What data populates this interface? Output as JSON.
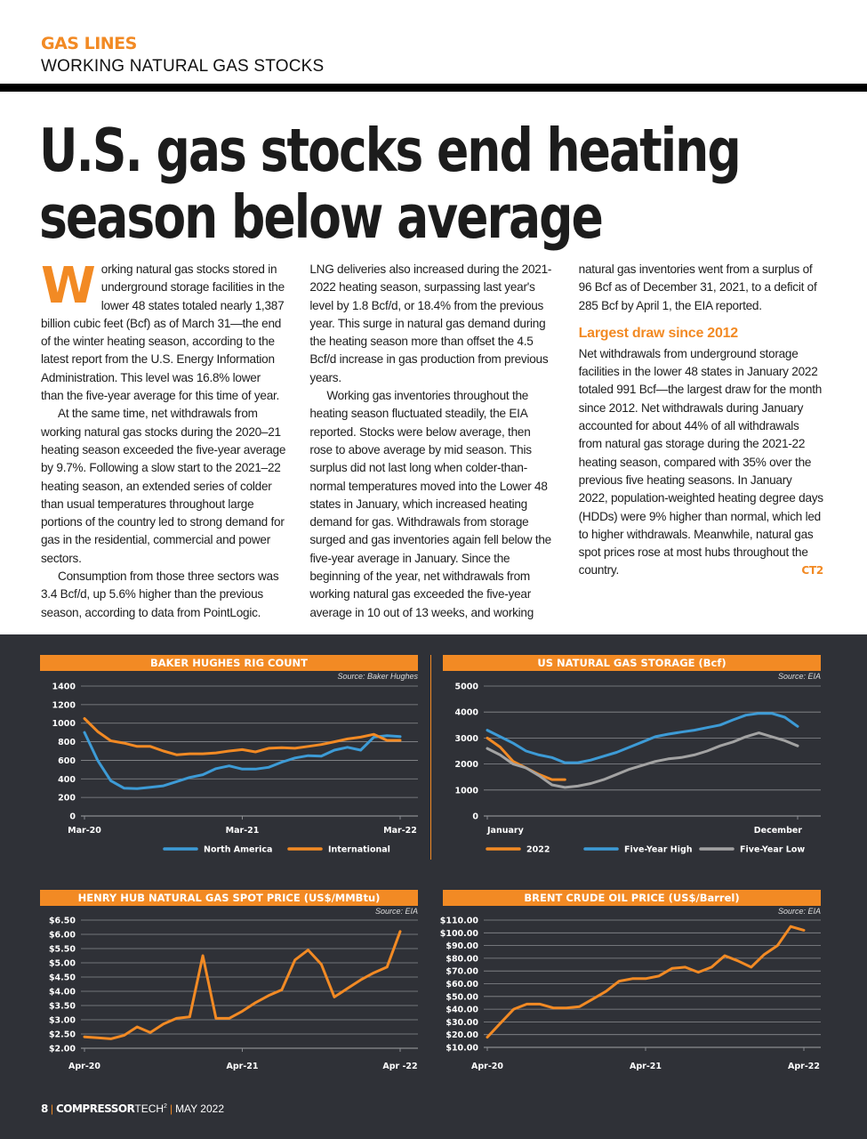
{
  "header": {
    "section": "GAS LINES",
    "subsection": "WORKING NATURAL GAS STOCKS"
  },
  "headline": "U.S. gas stocks end heating season below average",
  "article": {
    "dropcap": "W",
    "p1_rest": "orking natural gas stocks stored in underground storage facilities in the lower 48 states totaled nearly 1,387 billion cubic feet (Bcf) as of March 31—the end of the winter heating season, according to the latest report from the U.S. Energy Information Administration. This level was 16.8% lower than the five-year average for this time of year.",
    "p2": "At the same time, net withdrawals from working natural gas stocks during the 2020–21 heating season exceeded the five-year average by 9.7%. Following a slow start to the 2021–22 heating season, an extended series of colder than usual temperatures throughout large portions of the country led to strong demand for gas in the residential, commercial and power sectors.",
    "p3": "Consumption from those three sectors was 3.4 Bcf/d, up 5.6% higher than the previous season, according to data from PointLogic. LNG deliveries also increased during the 2021- 2022 heating season, surpassing last year's level by 1.8 Bcf/d, or 18.4% from the previous year. This surge in natural gas demand during the heating season more than offset the 4.5 Bcf/d increase in gas production from previous years.",
    "p4": "Working gas inventories throughout the heating season fluctuated steadily, the EIA reported. Stocks were below average, then rose to above average by mid season. This surplus did not last long when colder-than-normal temperatures moved into the Lower 48 states in January, which increased heating demand for gas. Withdrawals from storage surged and gas inventories again fell below the five-year average in January. Since the beginning of the year, net withdrawals from working natural gas exceeded the five-year average in 10 out of 13 weeks, and working natural gas inventories went from a surplus of 96 Bcf as of December 31, 2021, to a deficit of 285 Bcf by April 1, the EIA reported.",
    "subhead": "Largest draw since 2012",
    "p5": "Net withdrawals from underground storage facilities in the lower 48 states in January 2022 totaled 991 Bcf—the largest draw for the month since 2012. Net withdrawals during January accounted for about 44% of all withdrawals from natural gas storage during the 2021-22 heating season, compared with 35% over the previous five heating seasons. In January 2022, population-weighted heating degree days (HDDs) were 9% higher than normal, which led to higher withdrawals. Meanwhile, natural gas spot prices rose at most hubs throughout the country.",
    "endmark": "CT2"
  },
  "colors": {
    "accent": "#f28a24",
    "blue": "#3d9bd6",
    "gray": "#a3a3a3",
    "panel": "#2f3137"
  },
  "chart_data": [
    {
      "type": "line",
      "title": "BAKER HUGHES RIG COUNT",
      "source": "Source: Baker Hughes",
      "ylim": [
        0,
        1400
      ],
      "yticks": [
        0,
        200,
        400,
        600,
        800,
        1000,
        1200,
        1400
      ],
      "ytick_labels": [
        "0",
        "200",
        "400",
        "600",
        "800",
        "1000",
        "1200",
        "1400"
      ],
      "xtick_labels": [
        "Mar-20",
        "Mar-21",
        "Mar-22"
      ],
      "grid": true,
      "legend": "bottom",
      "series": [
        {
          "name": "North America",
          "color": "#3d9bd6",
          "values": [
            900,
            600,
            380,
            300,
            295,
            310,
            325,
            370,
            415,
            445,
            510,
            540,
            505,
            505,
            525,
            580,
            625,
            650,
            645,
            710,
            740,
            710,
            850,
            865,
            855
          ]
        },
        {
          "name": "International",
          "color": "#f28a24",
          "values": [
            1050,
            910,
            810,
            785,
            750,
            750,
            700,
            660,
            670,
            670,
            680,
            700,
            715,
            690,
            730,
            735,
            730,
            750,
            770,
            800,
            830,
            850,
            880,
            815,
            815
          ]
        }
      ]
    },
    {
      "type": "line",
      "title": "US NATURAL GAS STORAGE (Bcf)",
      "source": "Source: EIA",
      "ylim": [
        0,
        5000
      ],
      "yticks": [
        0,
        1000,
        2000,
        3000,
        4000,
        5000
      ],
      "ytick_labels": [
        "0",
        "1000",
        "2000",
        "3000",
        "4000",
        "5000"
      ],
      "xtick_labels": [
        "January",
        "December"
      ],
      "grid": true,
      "legend": "bottom",
      "series": [
        {
          "name": "2022",
          "color": "#f28a24",
          "values": [
            3000,
            2650,
            2100,
            1850,
            1600,
            1400,
            1400
          ]
        },
        {
          "name": "Five-Year High",
          "color": "#3d9bd6",
          "values": [
            3300,
            3050,
            2800,
            2500,
            2350,
            2250,
            2050,
            2050,
            2150,
            2300,
            2450,
            2650,
            2850,
            3050,
            3150,
            3230,
            3300,
            3400,
            3500,
            3700,
            3880,
            3950,
            3950,
            3800,
            3450
          ]
        },
        {
          "name": "Five-Year Low",
          "color": "#a3a3a3",
          "values": [
            2600,
            2350,
            2000,
            1850,
            1550,
            1200,
            1100,
            1150,
            1250,
            1400,
            1600,
            1800,
            1950,
            2100,
            2200,
            2250,
            2350,
            2500,
            2700,
            2850,
            3050,
            3200,
            3050,
            2900,
            2700
          ]
        }
      ]
    },
    {
      "type": "line",
      "title": "HENRY HUB NATURAL GAS SPOT PRICE (US$/MMBtu)",
      "source": "Source: EIA",
      "ylim": [
        2,
        6.5
      ],
      "yticks": [
        2,
        2.5,
        3,
        3.5,
        4,
        4.5,
        5,
        5.5,
        6,
        6.5
      ],
      "ytick_labels": [
        "$2.00",
        "$2.50",
        "$3.00",
        "$3.50",
        "$4.00",
        "$4.50",
        "$5.00",
        "$5.50",
        "$6.00",
        "$6.50"
      ],
      "xtick_labels": [
        "Apr-20",
        "Apr-21",
        "Apr -22"
      ],
      "grid": true,
      "series": [
        {
          "color": "#f28a24",
          "values": [
            2.4,
            2.37,
            2.33,
            2.45,
            2.75,
            2.55,
            2.85,
            3.05,
            3.1,
            5.25,
            3.05,
            3.05,
            3.3,
            3.6,
            3.85,
            4.05,
            5.1,
            5.45,
            4.95,
            3.8,
            4.1,
            4.4,
            4.65,
            4.85,
            6.1
          ]
        }
      ]
    },
    {
      "type": "line",
      "title": "BRENT CRUDE OIL PRICE (US$/Barrel)",
      "source": "Source: EIA",
      "ylim": [
        10,
        110
      ],
      "yticks": [
        10,
        20,
        30,
        40,
        50,
        60,
        70,
        80,
        90,
        100,
        110
      ],
      "ytick_labels": [
        "$10.00",
        "$20.00",
        "$30.00",
        "$40.00",
        "$50.00",
        "$60.00",
        "$70.00",
        "$80.00",
        "$90.00",
        "$100.00",
        "$110.00"
      ],
      "xtick_labels": [
        "Apr-20",
        "Apr-21",
        "Apr-22"
      ],
      "grid": true,
      "series": [
        {
          "color": "#f28a24",
          "values": [
            18,
            29,
            40,
            44,
            44,
            41,
            41,
            42,
            48,
            54,
            62,
            64,
            64,
            66,
            72,
            73,
            69,
            73,
            82,
            78,
            73,
            83,
            90,
            105,
            102
          ]
        }
      ]
    }
  ],
  "footer": {
    "page": "8",
    "brand_bold": "COMPRESSOR",
    "brand_light": "TECH",
    "brand_sup": "2",
    "issue": "MAY 2022"
  }
}
